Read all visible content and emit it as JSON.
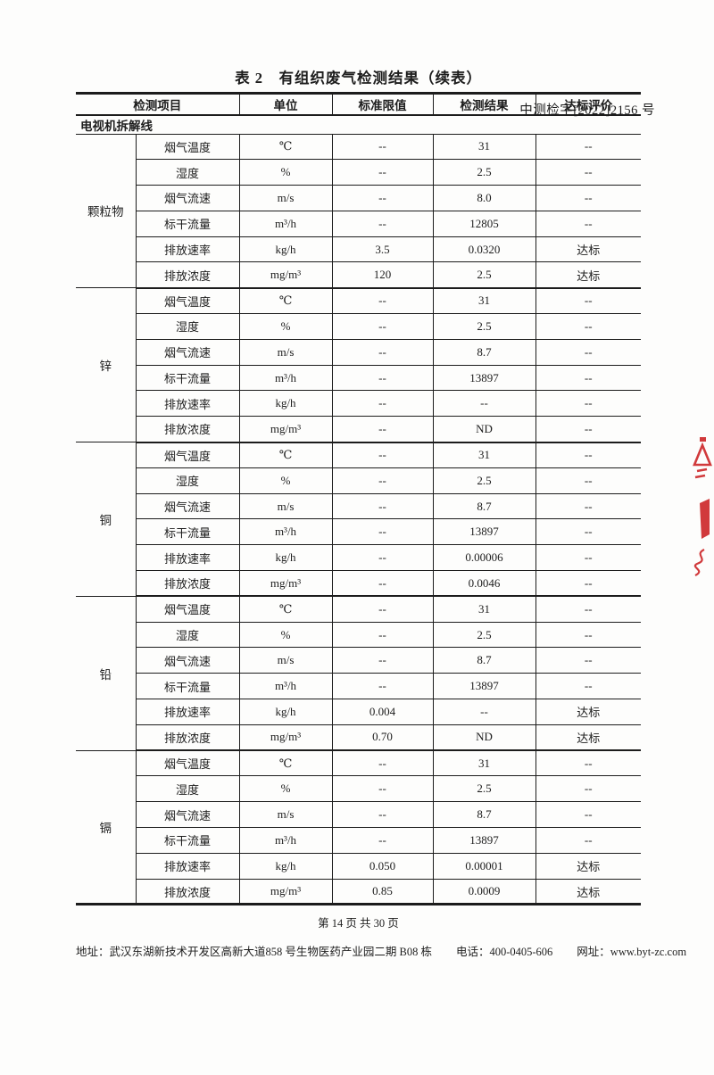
{
  "doc_number": "中测检字[2022]2156 号",
  "table_title": "表 2　有组织废气检测结果（续表）",
  "table": {
    "columns": [
      "检测项目",
      "单位",
      "标准限值",
      "检测结果",
      "达标评价"
    ],
    "section_label": "电视机拆解线",
    "groups": [
      {
        "name": "颗粒物",
        "rows": [
          [
            "烟气温度",
            "℃",
            "--",
            "31",
            "--"
          ],
          [
            "湿度",
            "%",
            "--",
            "2.5",
            "--"
          ],
          [
            "烟气流速",
            "m/s",
            "--",
            "8.0",
            "--"
          ],
          [
            "标干流量",
            "m³/h",
            "--",
            "12805",
            "--"
          ],
          [
            "排放速率",
            "kg/h",
            "3.5",
            "0.0320",
            "达标"
          ],
          [
            "排放浓度",
            "mg/m³",
            "120",
            "2.5",
            "达标"
          ]
        ]
      },
      {
        "name": "锌",
        "rows": [
          [
            "烟气温度",
            "℃",
            "--",
            "31",
            "--"
          ],
          [
            "湿度",
            "%",
            "--",
            "2.5",
            "--"
          ],
          [
            "烟气流速",
            "m/s",
            "--",
            "8.7",
            "--"
          ],
          [
            "标干流量",
            "m³/h",
            "--",
            "13897",
            "--"
          ],
          [
            "排放速率",
            "kg/h",
            "--",
            "--",
            "--"
          ],
          [
            "排放浓度",
            "mg/m³",
            "--",
            "ND",
            "--"
          ]
        ]
      },
      {
        "name": "铜",
        "rows": [
          [
            "烟气温度",
            "℃",
            "--",
            "31",
            "--"
          ],
          [
            "湿度",
            "%",
            "--",
            "2.5",
            "--"
          ],
          [
            "烟气流速",
            "m/s",
            "--",
            "8.7",
            "--"
          ],
          [
            "标干流量",
            "m³/h",
            "--",
            "13897",
            "--"
          ],
          [
            "排放速率",
            "kg/h",
            "--",
            "0.00006",
            "--"
          ],
          [
            "排放浓度",
            "mg/m³",
            "--",
            "0.0046",
            "--"
          ]
        ]
      },
      {
        "name": "铅",
        "rows": [
          [
            "烟气温度",
            "℃",
            "--",
            "31",
            "--"
          ],
          [
            "湿度",
            "%",
            "--",
            "2.5",
            "--"
          ],
          [
            "烟气流速",
            "m/s",
            "--",
            "8.7",
            "--"
          ],
          [
            "标干流量",
            "m³/h",
            "--",
            "13897",
            "--"
          ],
          [
            "排放速率",
            "kg/h",
            "0.004",
            "--",
            "达标"
          ],
          [
            "排放浓度",
            "mg/m³",
            "0.70",
            "ND",
            "达标"
          ]
        ]
      },
      {
        "name": "镉",
        "rows": [
          [
            "烟气温度",
            "℃",
            "--",
            "31",
            "--"
          ],
          [
            "湿度",
            "%",
            "--",
            "2.5",
            "--"
          ],
          [
            "烟气流速",
            "m/s",
            "--",
            "8.7",
            "--"
          ],
          [
            "标干流量",
            "m³/h",
            "--",
            "13897",
            "--"
          ],
          [
            "排放速率",
            "kg/h",
            "0.050",
            "0.00001",
            "达标"
          ],
          [
            "排放浓度",
            "mg/m³",
            "0.85",
            "0.0009",
            "达标"
          ]
        ]
      }
    ]
  },
  "footer": {
    "page_info": "第 14 页 共 30 页",
    "address": "地址：武汉东湖新技术开发区高新大道858 号生物医药产业园二期 B08 栋",
    "phone": "电话：400-0405-606",
    "website": "网址：www.byt-zc.com"
  },
  "colors": {
    "seal_red": "#d13a3c"
  }
}
